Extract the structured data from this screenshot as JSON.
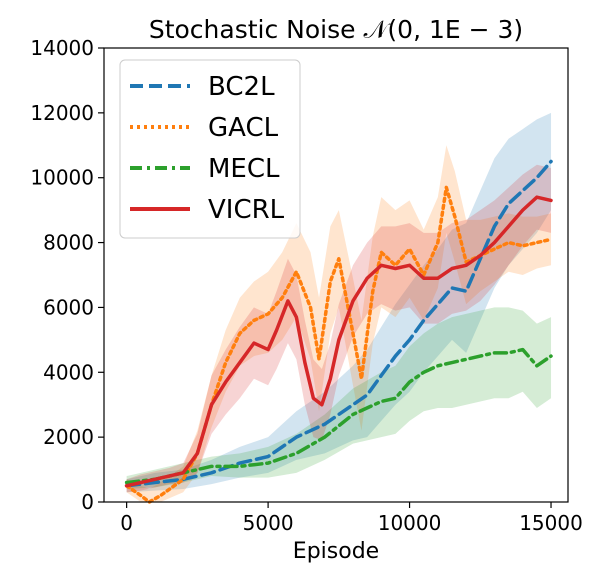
{
  "chart_data": {
    "type": "line",
    "title": "Stochastic Noise 𝒩(0, 1E − 3)",
    "xlabel": "Episode",
    "ylabel": "",
    "xlim": [
      -800,
      15600
    ],
    "ylim": [
      0,
      14000
    ],
    "xticks": [
      0,
      5000,
      10000,
      15000
    ],
    "yticks": [
      0,
      2000,
      4000,
      6000,
      8000,
      10000,
      12000,
      14000
    ],
    "grid": false,
    "legend_position": "top-left",
    "series": [
      {
        "name": "BC2L",
        "color": "#1f77b4",
        "dash": "dashed",
        "x": [
          0,
          1000,
          2000,
          3000,
          4000,
          5000,
          5500,
          6000,
          6500,
          7000,
          7500,
          8000,
          8500,
          9000,
          9500,
          10000,
          10500,
          11000,
          11500,
          12000,
          12500,
          13000,
          13500,
          14000,
          14500,
          15000
        ],
        "y": [
          500,
          600,
          700,
          900,
          1200,
          1400,
          1700,
          2000,
          2200,
          2400,
          2700,
          3000,
          3300,
          3900,
          4500,
          5000,
          5600,
          6100,
          6600,
          6500,
          7500,
          8500,
          9200,
          9600,
          10000,
          10500
        ],
        "upper": [
          700,
          900,
          1000,
          1300,
          1700,
          2000,
          2400,
          2800,
          3100,
          3400,
          3800,
          4200,
          4700,
          5400,
          6100,
          6700,
          7300,
          7800,
          8400,
          8600,
          9600,
          10600,
          11200,
          11500,
          11800,
          12000
        ],
        "lower": [
          300,
          350,
          400,
          550,
          750,
          900,
          1100,
          1300,
          1400,
          1500,
          1700,
          1900,
          2000,
          2500,
          3000,
          3400,
          4000,
          4500,
          5000,
          4600,
          5600,
          6600,
          7300,
          7800,
          8300,
          9000
        ]
      },
      {
        "name": "GACL",
        "color": "#ff7f0e",
        "dash": "dotted",
        "x": [
          0,
          500,
          800,
          1200,
          2000,
          2500,
          3000,
          3500,
          4000,
          4500,
          5000,
          5500,
          6000,
          6500,
          6800,
          7200,
          7500,
          8000,
          8300,
          8700,
          9000,
          9500,
          10000,
          10500,
          11000,
          11300,
          11600,
          12000,
          12500,
          13000,
          13500,
          14000,
          14500,
          15000
        ],
        "y": [
          500,
          200,
          0,
          200,
          700,
          1500,
          3000,
          4300,
          5200,
          5600,
          5800,
          6300,
          7100,
          6000,
          4400,
          6800,
          7500,
          5200,
          3800,
          6500,
          7700,
          7300,
          7800,
          7000,
          8000,
          9700,
          8800,
          7400,
          7600,
          7800,
          8000,
          7900,
          8000,
          8100
        ],
        "upper": [
          700,
          500,
          400,
          600,
          1100,
          2200,
          3900,
          5300,
          6300,
          6800,
          7100,
          7700,
          8600,
          7700,
          6300,
          8500,
          9000,
          6900,
          5600,
          8200,
          9400,
          9000,
          9300,
          8400,
          9400,
          11000,
          10200,
          8700,
          8700,
          8800,
          8900,
          8800,
          8800,
          8900
        ],
        "lower": [
          300,
          0,
          0,
          0,
          300,
          900,
          2300,
          3400,
          4200,
          4500,
          4600,
          5000,
          5700,
          4400,
          2800,
          5200,
          6000,
          3600,
          2200,
          4900,
          6000,
          5700,
          6300,
          5600,
          6600,
          8300,
          7400,
          6100,
          6500,
          6800,
          7100,
          7000,
          7200,
          7300
        ]
      },
      {
        "name": "MECL",
        "color": "#2ca02c",
        "dash": "dashdot",
        "x": [
          0,
          1000,
          2000,
          2500,
          3000,
          4000,
          5000,
          6000,
          7000,
          8000,
          9000,
          9500,
          10000,
          10500,
          11000,
          11500,
          12000,
          12500,
          13000,
          13500,
          14000,
          14500,
          15000
        ],
        "y": [
          600,
          700,
          900,
          1000,
          1100,
          1100,
          1200,
          1500,
          2000,
          2700,
          3100,
          3200,
          3700,
          4000,
          4200,
          4300,
          4400,
          4500,
          4600,
          4600,
          4700,
          4200,
          4500
        ],
        "upper": [
          800,
          1000,
          1200,
          1300,
          1400,
          1500,
          1700,
          2100,
          2700,
          3500,
          4000,
          4200,
          4800,
          5200,
          5500,
          5700,
          5800,
          5900,
          6000,
          6000,
          5900,
          5500,
          5700
        ],
        "lower": [
          400,
          450,
          600,
          700,
          800,
          750,
          750,
          900,
          1300,
          1800,
          2000,
          2100,
          2500,
          2800,
          2900,
          2900,
          3000,
          3100,
          3200,
          3200,
          3400,
          2900,
          3200
        ]
      },
      {
        "name": "VICRL",
        "color": "#d62728",
        "dash": "solid",
        "x": [
          0,
          500,
          1000,
          1500,
          2000,
          2500,
          3000,
          3500,
          4000,
          4500,
          5000,
          5300,
          5700,
          6000,
          6300,
          6600,
          6900,
          7200,
          7500,
          8000,
          8500,
          9000,
          9500,
          10000,
          10500,
          11000,
          11500,
          12000,
          12500,
          13000,
          13500,
          14000,
          14500,
          15000
        ],
        "y": [
          500,
          600,
          700,
          800,
          900,
          1500,
          3000,
          3700,
          4300,
          4900,
          4700,
          5300,
          6200,
          5700,
          4300,
          3200,
          3000,
          3800,
          5000,
          6200,
          6900,
          7300,
          7200,
          7300,
          6900,
          6900,
          7200,
          7300,
          7600,
          8000,
          8500,
          9000,
          9400,
          9300
        ],
        "upper": [
          700,
          850,
          950,
          1050,
          1200,
          2100,
          3900,
          4700,
          5400,
          6000,
          5800,
          6500,
          7500,
          7000,
          5600,
          4400,
          4100,
          4900,
          6100,
          7300,
          8000,
          8500,
          8500,
          8600,
          8300,
          8300,
          8600,
          8700,
          9000,
          9300,
          9700,
          10100,
          10400,
          10300
        ],
        "lower": [
          300,
          350,
          450,
          550,
          600,
          900,
          2100,
          2700,
          3200,
          3800,
          3600,
          4100,
          4900,
          4400,
          3000,
          2000,
          1900,
          2700,
          3900,
          5100,
          5800,
          6100,
          5900,
          6000,
          5500,
          5500,
          5800,
          5900,
          6200,
          6700,
          7300,
          7900,
          8400,
          8300
        ]
      }
    ]
  }
}
